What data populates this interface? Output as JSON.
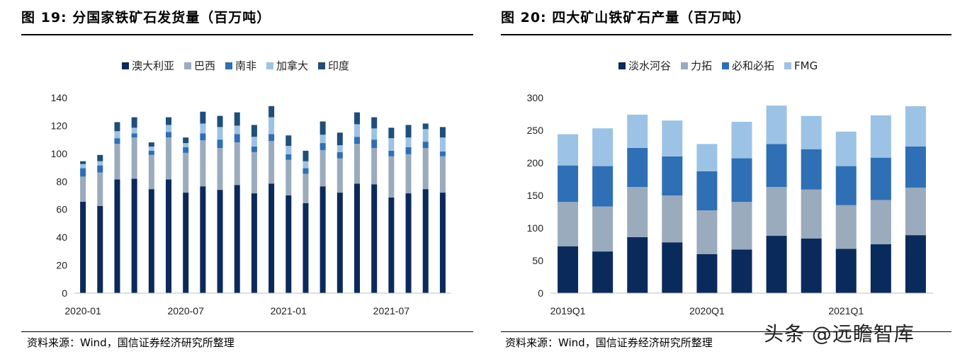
{
  "panels": [
    {
      "title": "图 19:  分国家铁矿石发货量（百万吨）",
      "source": "资料来源：Wind，国信证券经济研究所整理"
    },
    {
      "title": "图 20:  四大矿山铁矿石产量（百万吨）",
      "source": "资料来源：Wind，国信证券经济研究所整理"
    }
  ],
  "watermark": "头条 @远瞻智库",
  "chart_data": [
    {
      "type": "bar",
      "stacked": true,
      "title": "分国家铁矿石发货量（百万吨）",
      "categories": [
        "2020-01",
        "2020-02",
        "2020-03",
        "2020-04",
        "2020-05",
        "2020-06",
        "2020-07",
        "2020-08",
        "2020-09",
        "2020-10",
        "2020-11",
        "2020-12",
        "2021-01",
        "2021-02",
        "2021-03",
        "2021-04",
        "2021-05",
        "2021-06",
        "2021-07",
        "2021-08",
        "2021-09",
        "2021-10"
      ],
      "x_tick_labels": [
        "2020-01",
        "2020-07",
        "2021-01",
        "2021-07"
      ],
      "x_tick_index": [
        0,
        6,
        12,
        18
      ],
      "ylim": [
        0,
        140
      ],
      "yticks": [
        0,
        20,
        40,
        60,
        80,
        100,
        120,
        140
      ],
      "grid": false,
      "legend_position": "top",
      "series": [
        {
          "name": "澳大利亚",
          "color": "#0b2a5c",
          "values": [
            65.5,
            62.5,
            81.5,
            82,
            74.5,
            81.5,
            72,
            76.5,
            74,
            77.5,
            71.5,
            78.5,
            70,
            64.5,
            76.5,
            72,
            78.5,
            78,
            68.5,
            71.5,
            74.5,
            72
          ]
        },
        {
          "name": "巴西",
          "color": "#9aabbe",
          "values": [
            18,
            24,
            25.5,
            29.5,
            24.5,
            30,
            28.5,
            33,
            30,
            30.5,
            29.5,
            30.5,
            25.5,
            21,
            26,
            24.5,
            28.5,
            26,
            29.5,
            28,
            29.5,
            26
          ]
        },
        {
          "name": "南非",
          "color": "#2f6fb5",
          "values": [
            6,
            5,
            4,
            3,
            3,
            4,
            4,
            5,
            6,
            6,
            4,
            5,
            4,
            4,
            5,
            4.5,
            5,
            6,
            4,
            5,
            4.5,
            3.5
          ]
        },
        {
          "name": "加拿大",
          "color": "#9cc3e5",
          "values": [
            3,
            3,
            5,
            4,
            3,
            5,
            3,
            7,
            9,
            6,
            7,
            12,
            6,
            5,
            6,
            5,
            9,
            8,
            9,
            7,
            9,
            10
          ]
        },
        {
          "name": "印度",
          "color": "#1f4e79",
          "values": [
            2,
            4.5,
            6.5,
            7.5,
            3,
            5.5,
            4,
            8.5,
            8,
            9.5,
            8.5,
            8,
            7.5,
            7.5,
            9.5,
            9,
            8.5,
            8,
            7.5,
            9,
            4,
            7.5
          ]
        }
      ]
    },
    {
      "type": "bar",
      "stacked": true,
      "title": "四大矿山铁矿石产量（百万吨）",
      "categories": [
        "2019Q1",
        "2019Q2",
        "2019Q3",
        "2019Q4",
        "2020Q1",
        "2020Q2",
        "2020Q3",
        "2020Q4",
        "2021Q1",
        "2021Q2",
        "2021Q3"
      ],
      "x_tick_labels": [
        "2019Q1",
        "2020Q1",
        "2021Q1"
      ],
      "x_tick_index": [
        0,
        4,
        8
      ],
      "ylim": [
        0,
        300
      ],
      "yticks": [
        0,
        50,
        100,
        150,
        200,
        250,
        300
      ],
      "grid": false,
      "legend_position": "top",
      "series": [
        {
          "name": "淡水河谷",
          "color": "#0b2a5c",
          "values": [
            72,
            64,
            86,
            78,
            60,
            67,
            88,
            84,
            68,
            75,
            89
          ]
        },
        {
          "name": "力拓",
          "color": "#9aabbe",
          "values": [
            68,
            69,
            77,
            72,
            67,
            73,
            75,
            75,
            67,
            68,
            73
          ]
        },
        {
          "name": "必和必拓",
          "color": "#2f6fb5",
          "values": [
            56,
            62,
            60,
            60,
            60,
            67,
            66,
            62,
            60,
            65,
            63
          ]
        },
        {
          "name": "FMG",
          "color": "#9cc3e5",
          "values": [
            48,
            58,
            51,
            55,
            42,
            56,
            59,
            51,
            53,
            65,
            62
          ]
        }
      ]
    }
  ]
}
